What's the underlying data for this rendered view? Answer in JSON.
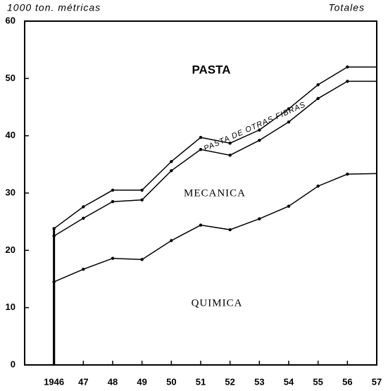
{
  "chart_data": {
    "type": "stacked_line",
    "title": "1000 ton. métricas",
    "subtitle": "Totales",
    "annotation": "PASTA",
    "x": [
      1946,
      1947,
      1948,
      1949,
      1950,
      1951,
      1952,
      1953,
      1954,
      1955,
      1956,
      1957
    ],
    "series": [
      {
        "name": "QUIMICA",
        "color": "#000000",
        "values": [
          14.5,
          16.7,
          18.6,
          18.4,
          21.7,
          24.4,
          23.6,
          25.5,
          27.7,
          31.2,
          33.3,
          33.4
        ]
      },
      {
        "name": "MECANICA",
        "color": "#000000",
        "values": [
          8.0,
          8.9,
          9.9,
          10.4,
          12.2,
          13.2,
          13.0,
          13.7,
          14.7,
          15.3,
          16.2,
          16.1
        ]
      },
      {
        "name": "PASTA DE OTRAS FIBRAS",
        "color": "#000000",
        "values": [
          1.3,
          2.0,
          2.0,
          1.7,
          1.6,
          2.1,
          2.1,
          1.8,
          2.3,
          2.4,
          2.5,
          2.5
        ]
      }
    ],
    "xlim": [
      1945,
      1957
    ],
    "xticks": [
      1946,
      {
        "value": 1947,
        "label": "47"
      },
      {
        "value": 1948,
        "label": "48"
      },
      {
        "value": 1949,
        "label": "49"
      },
      {
        "value": 1950,
        "label": "50"
      },
      {
        "value": 1951,
        "label": "51"
      },
      {
        "value": 1952,
        "label": "52"
      },
      {
        "value": 1953,
        "label": "53"
      },
      {
        "value": 1954,
        "label": "54"
      },
      {
        "value": 1955,
        "label": "55"
      },
      {
        "value": 1956,
        "label": "56"
      },
      {
        "value": 1957,
        "label": "57"
      }
    ],
    "ylim": [
      0,
      60
    ],
    "yticks": [
      0,
      10,
      20,
      30,
      40,
      50,
      60
    ]
  }
}
